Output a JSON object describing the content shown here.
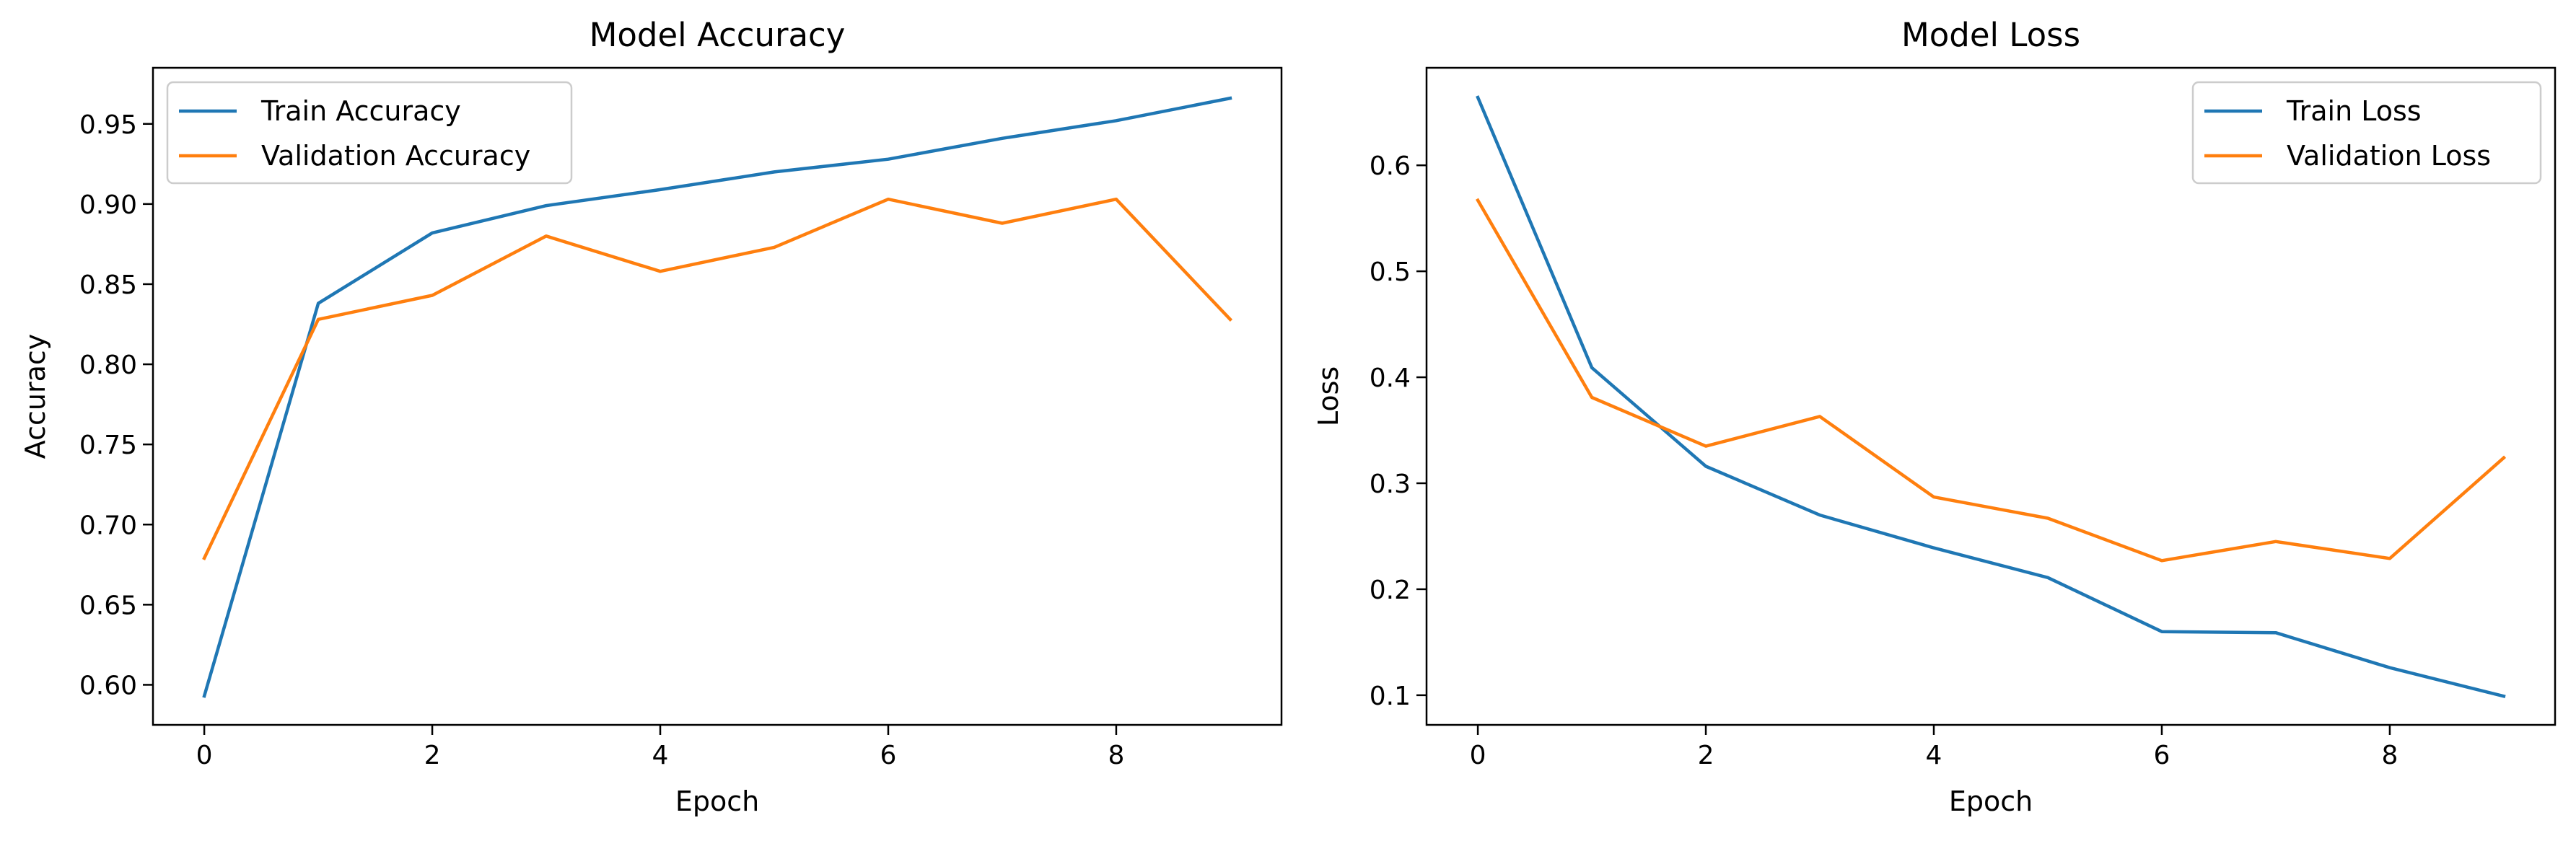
{
  "chart_data": [
    {
      "type": "line",
      "title": "Model Accuracy",
      "xlabel": "Epoch",
      "ylabel": "Accuracy",
      "x": [
        0,
        1,
        2,
        3,
        4,
        5,
        6,
        7,
        8,
        9
      ],
      "xlim": [
        -0.45,
        9.45
      ],
      "ylim": [
        0.575,
        0.985
      ],
      "xticks": [
        0,
        2,
        4,
        6,
        8
      ],
      "xtick_labels": [
        "0",
        "2",
        "4",
        "6",
        "8"
      ],
      "yticks": [
        0.6,
        0.65,
        0.7,
        0.75,
        0.8,
        0.85,
        0.9,
        0.95
      ],
      "ytick_labels": [
        "0.60",
        "0.65",
        "0.70",
        "0.75",
        "0.80",
        "0.85",
        "0.90",
        "0.95"
      ],
      "grid": false,
      "legend_position": "top-left",
      "series": [
        {
          "name": "Train Accuracy",
          "color": "#1f77b4",
          "values": [
            0.593,
            0.838,
            0.882,
            0.899,
            0.909,
            0.92,
            0.928,
            0.941,
            0.952,
            0.966
          ]
        },
        {
          "name": "Validation Accuracy",
          "color": "#ff7f0e",
          "values": [
            0.679,
            0.828,
            0.843,
            0.88,
            0.858,
            0.873,
            0.903,
            0.888,
            0.903,
            0.828
          ]
        }
      ]
    },
    {
      "type": "line",
      "title": "Model Loss",
      "xlabel": "Epoch",
      "ylabel": "Loss",
      "x": [
        0,
        1,
        2,
        3,
        4,
        5,
        6,
        7,
        8,
        9
      ],
      "xlim": [
        -0.45,
        9.45
      ],
      "ylim": [
        0.072,
        0.692
      ],
      "xticks": [
        0,
        2,
        4,
        6,
        8
      ],
      "xtick_labels": [
        "0",
        "2",
        "4",
        "6",
        "8"
      ],
      "yticks": [
        0.1,
        0.2,
        0.3,
        0.4,
        0.5,
        0.6
      ],
      "ytick_labels": [
        "0.1",
        "0.2",
        "0.3",
        "0.4",
        "0.5",
        "0.6"
      ],
      "grid": false,
      "legend_position": "top-right",
      "series": [
        {
          "name": "Train Loss",
          "color": "#1f77b4",
          "values": [
            0.664,
            0.409,
            0.316,
            0.27,
            0.239,
            0.211,
            0.16,
            0.159,
            0.126,
            0.099
          ]
        },
        {
          "name": "Validation Loss",
          "color": "#ff7f0e",
          "values": [
            0.567,
            0.381,
            0.335,
            0.363,
            0.287,
            0.267,
            0.227,
            0.245,
            0.229,
            0.324
          ]
        }
      ]
    }
  ]
}
